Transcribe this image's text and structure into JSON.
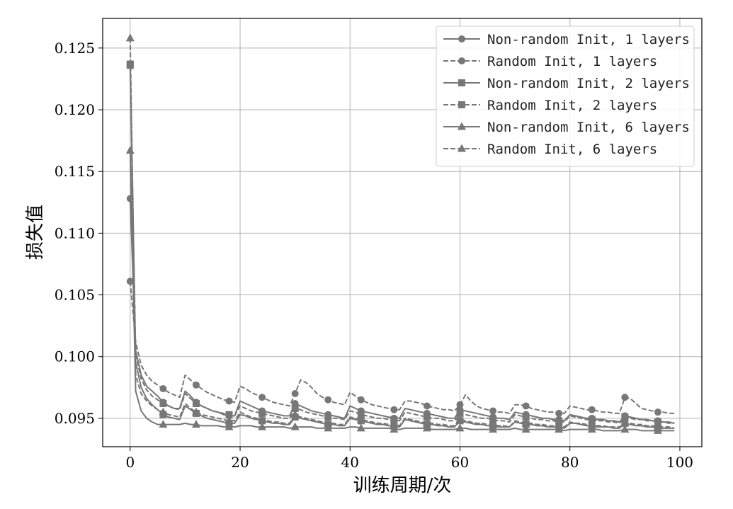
{
  "chart_data": {
    "type": "line",
    "xlabel": "训练周期/次",
    "ylabel": "损失值",
    "xlim": [
      -5,
      104
    ],
    "ylim": [
      0.0927,
      0.1274
    ],
    "x_ticks": [
      0,
      20,
      40,
      60,
      80,
      100
    ],
    "x_tick_labels": [
      "0",
      "20",
      "40",
      "60",
      "80",
      "100"
    ],
    "y_ticks": [
      0.095,
      0.1,
      0.105,
      0.11,
      0.115,
      0.12,
      0.125
    ],
    "y_tick_labels": [
      "0.095",
      "0.100",
      "0.105",
      "0.110",
      "0.115",
      "0.120",
      "0.125"
    ],
    "grid": true,
    "legend_position": "top-right",
    "series_color": "#777777",
    "x": [
      0,
      1,
      2,
      3,
      4,
      5,
      6,
      7,
      8,
      9,
      10,
      11,
      12,
      13,
      14,
      15,
      16,
      17,
      18,
      19,
      20,
      21,
      22,
      23,
      24,
      25,
      26,
      27,
      28,
      29,
      30,
      31,
      32,
      33,
      34,
      35,
      36,
      37,
      38,
      39,
      40,
      41,
      42,
      43,
      44,
      45,
      46,
      47,
      48,
      49,
      50,
      51,
      52,
      53,
      54,
      55,
      56,
      57,
      58,
      59,
      60,
      61,
      62,
      63,
      64,
      65,
      66,
      67,
      68,
      69,
      70,
      71,
      72,
      73,
      74,
      75,
      76,
      77,
      78,
      79,
      80,
      81,
      82,
      83,
      84,
      85,
      86,
      87,
      88,
      89,
      90,
      91,
      92,
      93,
      94,
      95,
      96,
      97,
      98,
      99
    ],
    "marker_every": 6,
    "series": [
      {
        "name": "Non-random Init, 1 layers",
        "marker": "circle",
        "linestyle": "solid",
        "values": [
          0.1128,
          0.1005,
          0.0985,
          0.0976,
          0.0972,
          0.0968,
          0.0963,
          0.096,
          0.0958,
          0.0958,
          0.0972,
          0.0968,
          0.0963,
          0.096,
          0.0958,
          0.0956,
          0.0955,
          0.0953,
          0.0952,
          0.0952,
          0.0964,
          0.0962,
          0.096,
          0.0958,
          0.0956,
          0.0955,
          0.0954,
          0.0953,
          0.0952,
          0.0952,
          0.0962,
          0.096,
          0.0958,
          0.0956,
          0.0955,
          0.0954,
          0.0953,
          0.0952,
          0.0951,
          0.095,
          0.096,
          0.0958,
          0.0956,
          0.0955,
          0.0954,
          0.0953,
          0.0952,
          0.0951,
          0.095,
          0.095,
          0.0958,
          0.0957,
          0.0956,
          0.0955,
          0.0954,
          0.0953,
          0.0952,
          0.0951,
          0.095,
          0.095,
          0.0957,
          0.0956,
          0.0955,
          0.0954,
          0.0953,
          0.0952,
          0.0951,
          0.095,
          0.095,
          0.0949,
          0.0955,
          0.0954,
          0.0953,
          0.0952,
          0.0951,
          0.095,
          0.095,
          0.0949,
          0.0949,
          0.0948,
          0.0953,
          0.0952,
          0.0951,
          0.095,
          0.095,
          0.0949,
          0.0949,
          0.0948,
          0.0948,
          0.0947,
          0.0952,
          0.0951,
          0.095,
          0.0949,
          0.0949,
          0.0948,
          0.0948,
          0.0947,
          0.0947,
          0.0946
        ]
      },
      {
        "name": "Random Init, 1 layers",
        "marker": "circle",
        "linestyle": "dashed",
        "values": [
          0.1061,
          0.1012,
          0.0993,
          0.0985,
          0.098,
          0.0977,
          0.0974,
          0.0971,
          0.0969,
          0.0967,
          0.0985,
          0.0981,
          0.0977,
          0.0974,
          0.0971,
          0.0969,
          0.0967,
          0.0965,
          0.0964,
          0.0963,
          0.0976,
          0.0974,
          0.0971,
          0.0969,
          0.0967,
          0.0965,
          0.0963,
          0.0962,
          0.0961,
          0.096,
          0.097,
          0.0981,
          0.0979,
          0.0975,
          0.097,
          0.0967,
          0.0965,
          0.0963,
          0.0962,
          0.0961,
          0.0971,
          0.0968,
          0.0965,
          0.0963,
          0.0961,
          0.096,
          0.0959,
          0.0958,
          0.0957,
          0.0957,
          0.0964,
          0.0964,
          0.0963,
          0.0962,
          0.096,
          0.0959,
          0.0958,
          0.0957,
          0.0957,
          0.0956,
          0.0961,
          0.0969,
          0.0964,
          0.096,
          0.0958,
          0.0957,
          0.0956,
          0.0955,
          0.0955,
          0.0954,
          0.0961,
          0.0961,
          0.096,
          0.0958,
          0.0957,
          0.0956,
          0.0955,
          0.0955,
          0.0954,
          0.0954,
          0.096,
          0.0959,
          0.0958,
          0.0957,
          0.0957,
          0.0956,
          0.0955,
          0.0955,
          0.0954,
          0.0954,
          0.0967,
          0.0966,
          0.0962,
          0.0958,
          0.0957,
          0.0956,
          0.0955,
          0.0955,
          0.0954,
          0.0954
        ]
      },
      {
        "name": "Non-random Init, 2 layers",
        "marker": "square",
        "linestyle": "solid",
        "values": [
          0.1236,
          0.0995,
          0.0975,
          0.0966,
          0.0961,
          0.0957,
          0.0953,
          0.0951,
          0.095,
          0.0949,
          0.096,
          0.0957,
          0.0954,
          0.0952,
          0.095,
          0.0949,
          0.0948,
          0.0947,
          0.0946,
          0.0946,
          0.0953,
          0.0952,
          0.095,
          0.0949,
          0.0948,
          0.0947,
          0.0946,
          0.0946,
          0.0945,
          0.0945,
          0.0951,
          0.095,
          0.0949,
          0.0948,
          0.0947,
          0.0946,
          0.0945,
          0.0945,
          0.0944,
          0.0944,
          0.095,
          0.0949,
          0.0948,
          0.0947,
          0.0946,
          0.0945,
          0.0945,
          0.0944,
          0.0944,
          0.0943,
          0.0949,
          0.0948,
          0.0947,
          0.0946,
          0.0945,
          0.0945,
          0.0944,
          0.0944,
          0.0943,
          0.0943,
          0.0948,
          0.0947,
          0.0946,
          0.0945,
          0.0945,
          0.0944,
          0.0944,
          0.0943,
          0.0943,
          0.0943,
          0.0947,
          0.0946,
          0.0945,
          0.0945,
          0.0944,
          0.0944,
          0.0943,
          0.0943,
          0.0943,
          0.0942,
          0.0946,
          0.0946,
          0.0945,
          0.0944,
          0.0944,
          0.0943,
          0.0943,
          0.0943,
          0.0942,
          0.0942,
          0.0946,
          0.0945,
          0.0944,
          0.0944,
          0.0943,
          0.0943,
          0.0942,
          0.0942,
          0.0942,
          0.0942
        ]
      },
      {
        "name": "Random Init, 2 layers",
        "marker": "square",
        "linestyle": "dashed",
        "values": [
          0.1237,
          0.1002,
          0.0982,
          0.0973,
          0.0968,
          0.0965,
          0.0962,
          0.096,
          0.0958,
          0.0957,
          0.097,
          0.0966,
          0.0962,
          0.096,
          0.0958,
          0.0956,
          0.0955,
          0.0954,
          0.0953,
          0.0952,
          0.096,
          0.0958,
          0.0956,
          0.0955,
          0.0954,
          0.0953,
          0.0952,
          0.0951,
          0.095,
          0.095,
          0.0958,
          0.0957,
          0.0955,
          0.0954,
          0.0953,
          0.0952,
          0.0951,
          0.095,
          0.095,
          0.0949,
          0.0956,
          0.0955,
          0.0953,
          0.0952,
          0.0951,
          0.095,
          0.095,
          0.0949,
          0.0949,
          0.0948,
          0.0955,
          0.0954,
          0.0953,
          0.0952,
          0.0951,
          0.095,
          0.095,
          0.0949,
          0.0948,
          0.0948,
          0.0954,
          0.0953,
          0.0952,
          0.0951,
          0.095,
          0.095,
          0.0949,
          0.0948,
          0.0948,
          0.0947,
          0.0953,
          0.0952,
          0.0951,
          0.095,
          0.0949,
          0.0949,
          0.0948,
          0.0948,
          0.0947,
          0.0947,
          0.0952,
          0.0951,
          0.095,
          0.0949,
          0.0949,
          0.0948,
          0.0948,
          0.0947,
          0.0947,
          0.0946,
          0.0951,
          0.095,
          0.0949,
          0.0949,
          0.0948,
          0.0948,
          0.0947,
          0.0947,
          0.0946,
          0.0946
        ]
      },
      {
        "name": "Non-random Init, 6 layers",
        "marker": "triangle",
        "linestyle": "solid",
        "values": [
          0.1167,
          0.0972,
          0.0956,
          0.095,
          0.0947,
          0.0945,
          0.0945,
          0.0945,
          0.0945,
          0.0945,
          0.0946,
          0.0945,
          0.0945,
          0.0944,
          0.0944,
          0.0944,
          0.0944,
          0.0943,
          0.0943,
          0.0943,
          0.0944,
          0.0944,
          0.0944,
          0.0943,
          0.0943,
          0.0943,
          0.0943,
          0.0943,
          0.0943,
          0.0942,
          0.0943,
          0.0943,
          0.0943,
          0.0943,
          0.0942,
          0.0942,
          0.0942,
          0.0942,
          0.0942,
          0.0942,
          0.0943,
          0.0943,
          0.0942,
          0.0942,
          0.0942,
          0.0942,
          0.0942,
          0.0942,
          0.0941,
          0.0941,
          0.0942,
          0.0942,
          0.0942,
          0.0942,
          0.0942,
          0.0941,
          0.0941,
          0.0941,
          0.0941,
          0.0941,
          0.0942,
          0.0942,
          0.0941,
          0.0941,
          0.0941,
          0.0941,
          0.0941,
          0.0941,
          0.0941,
          0.0941,
          0.0942,
          0.0941,
          0.0941,
          0.0941,
          0.0941,
          0.0941,
          0.0941,
          0.0941,
          0.0941,
          0.094,
          0.0941,
          0.0941,
          0.0941,
          0.0941,
          0.0941,
          0.0941,
          0.094,
          0.094,
          0.094,
          0.094,
          0.0941,
          0.0941,
          0.0941,
          0.094,
          0.094,
          0.094,
          0.094,
          0.094,
          0.094,
          0.094
        ]
      },
      {
        "name": "Random Init, 6 layers",
        "marker": "triangle",
        "linestyle": "dashed",
        "values": [
          0.1258,
          0.0985,
          0.097,
          0.0964,
          0.096,
          0.0957,
          0.0955,
          0.0953,
          0.0952,
          0.0951,
          0.0962,
          0.0958,
          0.0955,
          0.0953,
          0.0952,
          0.0951,
          0.095,
          0.0949,
          0.0948,
          0.0948,
          0.0955,
          0.0953,
          0.0951,
          0.095,
          0.0949,
          0.0948,
          0.0947,
          0.0947,
          0.0946,
          0.0946,
          0.0953,
          0.0951,
          0.095,
          0.0949,
          0.0948,
          0.0947,
          0.0946,
          0.0946,
          0.0945,
          0.0945,
          0.0951,
          0.095,
          0.0949,
          0.0948,
          0.0947,
          0.0946,
          0.0946,
          0.0945,
          0.0945,
          0.0944,
          0.095,
          0.0949,
          0.0948,
          0.0947,
          0.0946,
          0.0946,
          0.0945,
          0.0945,
          0.0944,
          0.0944,
          0.0949,
          0.0948,
          0.0947,
          0.0946,
          0.0946,
          0.0945,
          0.0945,
          0.0944,
          0.0944,
          0.0943,
          0.0948,
          0.0947,
          0.0946,
          0.0946,
          0.0945,
          0.0945,
          0.0944,
          0.0944,
          0.0943,
          0.0943,
          0.0947,
          0.0946,
          0.0946,
          0.0945,
          0.0945,
          0.0944,
          0.0944,
          0.0943,
          0.0943,
          0.0943,
          0.0946,
          0.0946,
          0.0945,
          0.0945,
          0.0944,
          0.0944,
          0.0943,
          0.0943,
          0.0943,
          0.0942
        ]
      }
    ]
  }
}
